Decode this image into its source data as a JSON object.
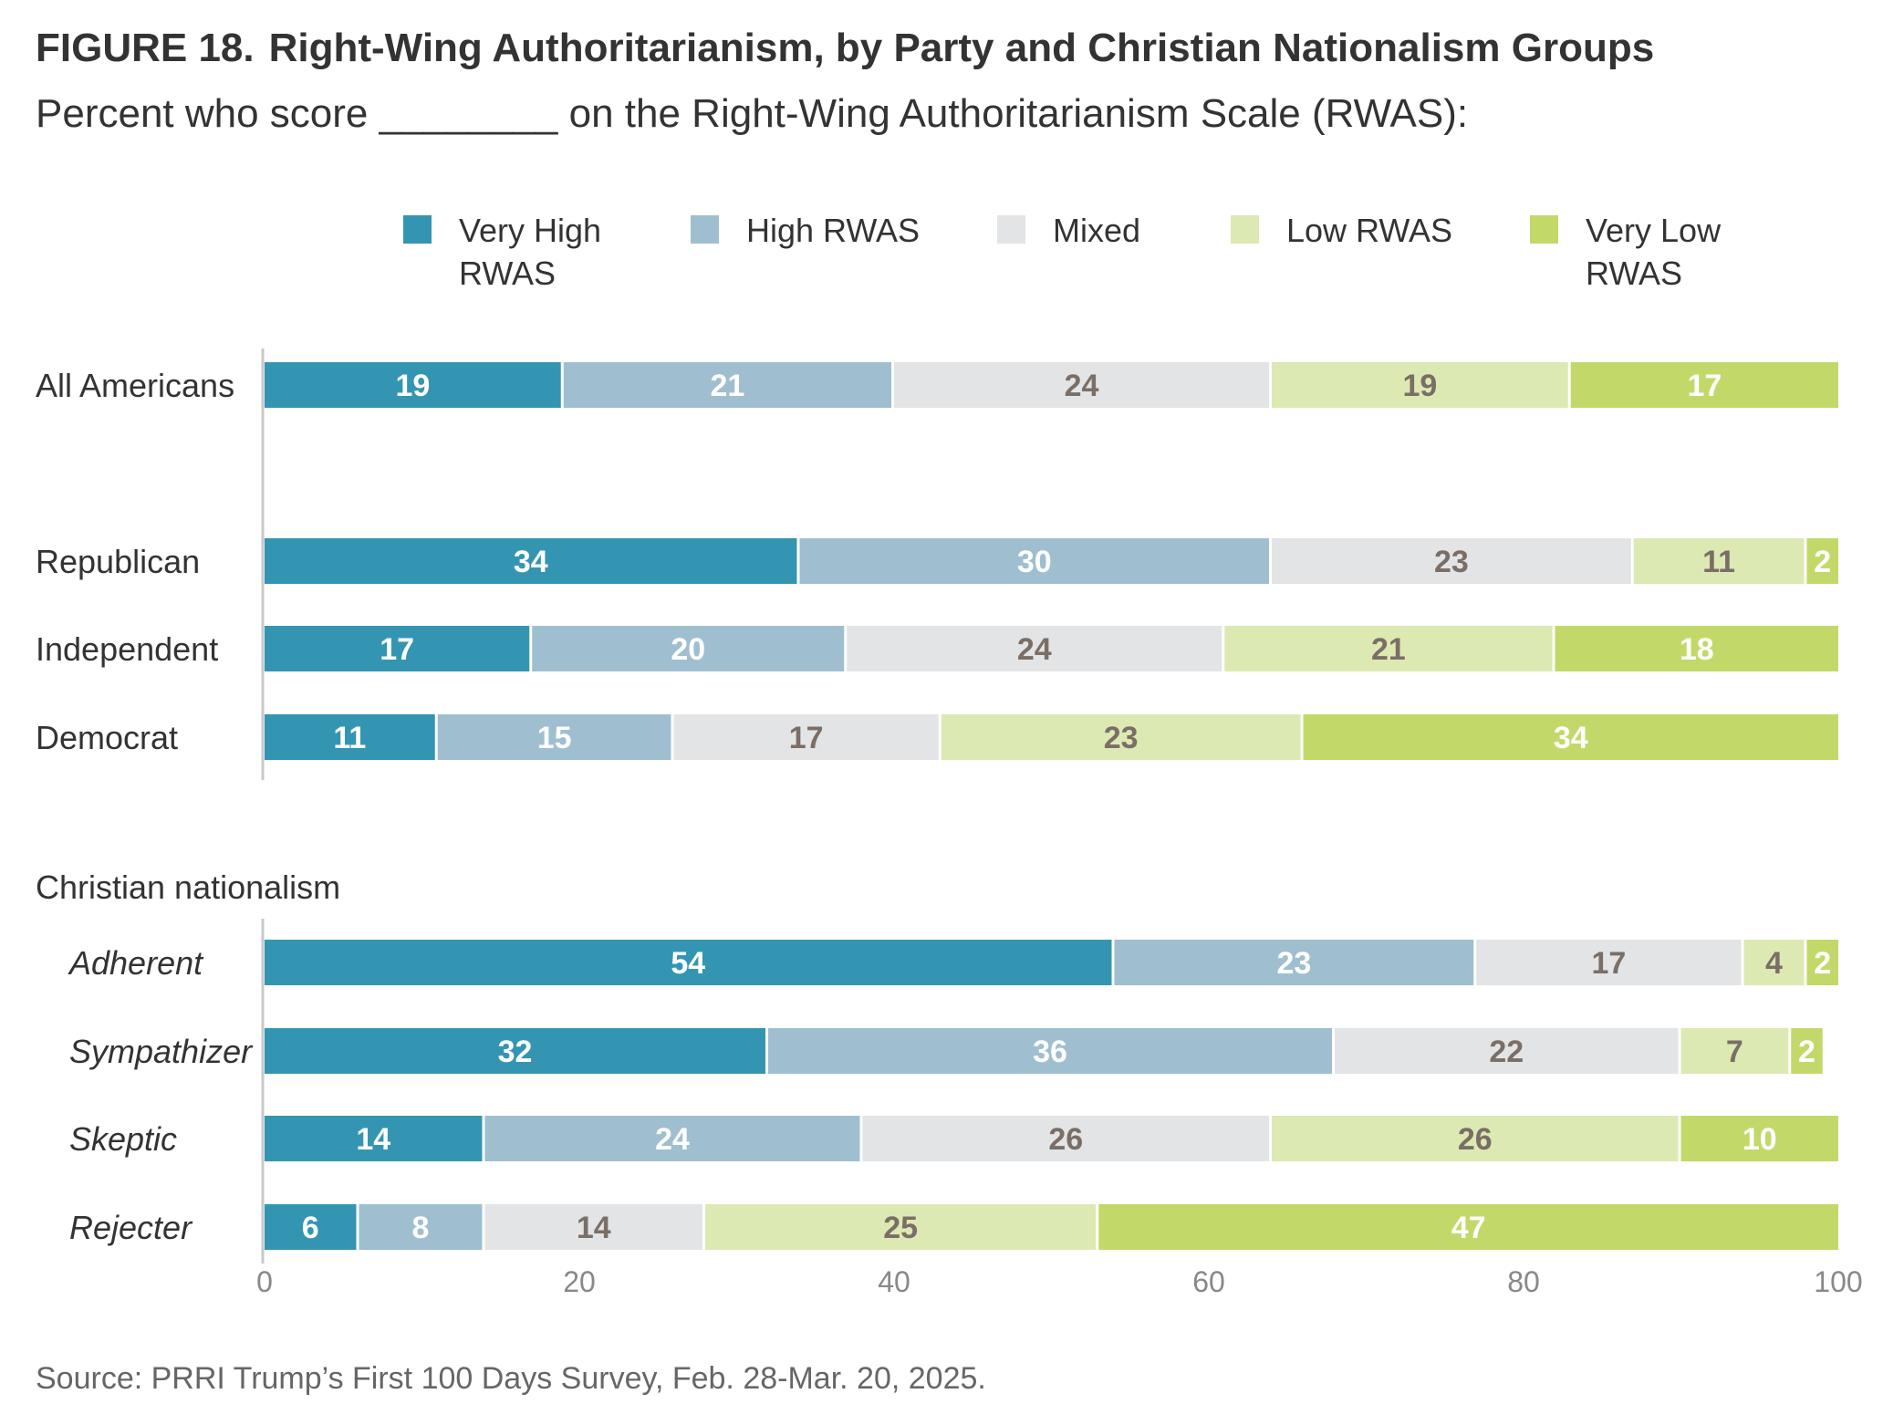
{
  "figure": {
    "number": "FIGURE 18.",
    "title": "Right-Wing Authoritarianism, by Party and Christian Nationalism Groups",
    "subtitle": "Percent who score ________ on the Right-Wing Authoritarianism Scale (RWAS):",
    "source": "Source: PRRI Trump’s First 100 Days Survey, Feb. 28-Mar. 20, 2025."
  },
  "chart_data": {
    "type": "bar",
    "orientation": "horizontal",
    "stacked": true,
    "xlim": [
      0,
      100
    ],
    "xticks": [
      0,
      20,
      40,
      60,
      80,
      100
    ],
    "grid": false,
    "legend_position": "top",
    "series": [
      {
        "name": "Very High RWAS",
        "color": "#3495b3",
        "label_color": "#ffffff"
      },
      {
        "name": "High RWAS",
        "color": "#9fbfd1",
        "label_color": "#ffffff"
      },
      {
        "name": "Mixed",
        "color": "#e3e4e5",
        "label_color": "#7a6e66"
      },
      {
        "name": "Low RWAS",
        "color": "#dde9b2",
        "label_color": "#7a6e66"
      },
      {
        "name": "Very Low RWAS",
        "color": "#c2d96a",
        "label_color": "#ffffff"
      }
    ],
    "groups": [
      {
        "label": "",
        "rows": [
          {
            "category": "All Americans",
            "italic": false,
            "values": [
              19,
              21,
              24,
              19,
              17
            ]
          }
        ]
      },
      {
        "label": "",
        "rows": [
          {
            "category": "Republican",
            "italic": false,
            "values": [
              34,
              30,
              23,
              11,
              2
            ]
          },
          {
            "category": "Independent",
            "italic": false,
            "values": [
              17,
              20,
              24,
              21,
              18
            ]
          },
          {
            "category": "Democrat",
            "italic": false,
            "values": [
              11,
              15,
              17,
              23,
              34
            ]
          }
        ]
      },
      {
        "label": "Christian nationalism",
        "rows": [
          {
            "category": "Adherent",
            "italic": true,
            "values": [
              54,
              23,
              17,
              4,
              2
            ]
          },
          {
            "category": "Sympathizer",
            "italic": true,
            "values": [
              32,
              36,
              22,
              7,
              2
            ]
          },
          {
            "category": "Skeptic",
            "italic": true,
            "values": [
              14,
              24,
              26,
              26,
              10
            ]
          },
          {
            "category": "Rejecter",
            "italic": true,
            "values": [
              6,
              8,
              14,
              25,
              47
            ]
          }
        ]
      }
    ]
  }
}
